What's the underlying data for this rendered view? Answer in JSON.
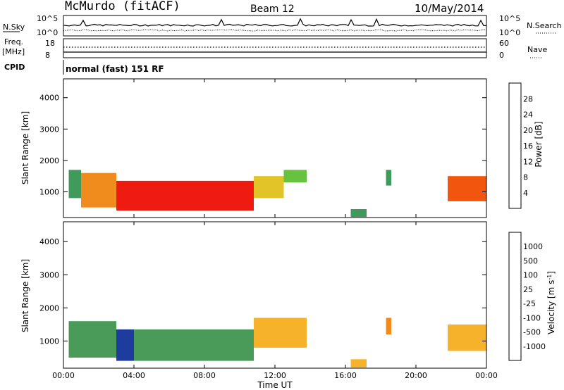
{
  "header": {
    "station": "McMurdo (fitACF)",
    "beam": "Beam 12",
    "date": "10/May/2014"
  },
  "summary_panel": {
    "nsky_label": "N.Sky",
    "nsky_ticks": [
      "10^5",
      "10^0"
    ],
    "nsearch_label": "N.Search",
    "nsearch_ticks": [
      "10^5",
      "10^0"
    ],
    "freq_label": "Freq.",
    "freq_unit": "[MHz]",
    "freq_ticks": [
      "18",
      "8"
    ],
    "nave_label": "Nave",
    "nave_ticks": [
      "60",
      "0"
    ],
    "cpid_label": "CPID",
    "cpid_text": "normal (fast) 151 RF"
  },
  "colors": {
    "power_scale": [
      "#0b24f0",
      "#2e4fb8",
      "#3f9a5c",
      "#66c23f",
      "#e3c428",
      "#f08c1e",
      "#f2560e",
      "#ef1b10"
    ],
    "velocity_scale": [
      "#e8161a",
      "#f15a1a",
      "#f48a1c",
      "#f7b22c",
      "#c2c2c2",
      "#6cc03a",
      "#4a9a5a",
      "#3c78b8",
      "#1e3c9e"
    ]
  },
  "chart_data": [
    {
      "type": "heatmap",
      "name": "power",
      "xlabel": "",
      "ylabel": "Slant Range [km]",
      "xlim": [
        0,
        24
      ],
      "ylim": [
        180,
        4600
      ],
      "yticks": [
        "1000",
        "2000",
        "3000",
        "4000"
      ],
      "colorbar": {
        "label": "Power [dB]",
        "ticks": [
          "4",
          "8",
          "12",
          "16",
          "20",
          "24",
          "28"
        ],
        "range": [
          0,
          32
        ]
      },
      "regions": [
        {
          "x0": 0.3,
          "x1": 1.0,
          "y0": 800,
          "y1": 1700,
          "value": 10
        },
        {
          "x0": 1.0,
          "x1": 3.0,
          "y0": 500,
          "y1": 1600,
          "value": 22
        },
        {
          "x0": 3.0,
          "x1": 10.8,
          "y0": 400,
          "y1": 1350,
          "value": 30
        },
        {
          "x0": 10.8,
          "x1": 12.5,
          "y0": 800,
          "y1": 1500,
          "value": 18
        },
        {
          "x0": 12.5,
          "x1": 13.8,
          "y0": 1300,
          "y1": 1700,
          "value": 12
        },
        {
          "x0": 18.3,
          "x1": 18.6,
          "y0": 1200,
          "y1": 1700,
          "value": 8
        },
        {
          "x0": 16.3,
          "x1": 17.2,
          "y0": 200,
          "y1": 450,
          "value": 10
        },
        {
          "x0": 21.8,
          "x1": 24.0,
          "y0": 700,
          "y1": 1500,
          "value": 24
        }
      ]
    },
    {
      "type": "heatmap",
      "name": "velocity",
      "xlabel": "Time UT",
      "ylabel": "Slant Range [km]",
      "xlim": [
        0,
        24
      ],
      "ylim": [
        180,
        4600
      ],
      "xticks": [
        "00:00",
        "04:00",
        "08:00",
        "12:00",
        "16:00",
        "20:00",
        "00:00"
      ],
      "yticks": [
        "1000",
        "2000",
        "3000",
        "4000"
      ],
      "colorbar": {
        "label": "Velocity [m s^-1]",
        "ticks": [
          "1000",
          "500",
          "100",
          "25",
          "-25",
          "-100",
          "-500",
          "-1000"
        ]
      },
      "regions": [
        {
          "x0": 0.3,
          "x1": 3.0,
          "y0": 500,
          "y1": 1600,
          "value": 100
        },
        {
          "x0": 3.0,
          "x1": 4.0,
          "y0": 400,
          "y1": 1350,
          "value": 1000
        },
        {
          "x0": 4.0,
          "x1": 10.8,
          "y0": 400,
          "y1": 1350,
          "value": 100
        },
        {
          "x0": 10.8,
          "x1": 13.8,
          "y0": 800,
          "y1": 1700,
          "value": -100
        },
        {
          "x0": 16.3,
          "x1": 17.2,
          "y0": 200,
          "y1": 450,
          "value": -100
        },
        {
          "x0": 18.3,
          "x1": 18.6,
          "y0": 1200,
          "y1": 1700,
          "value": -500
        },
        {
          "x0": 21.8,
          "x1": 24.0,
          "y0": 700,
          "y1": 1500,
          "value": -100
        }
      ]
    }
  ]
}
